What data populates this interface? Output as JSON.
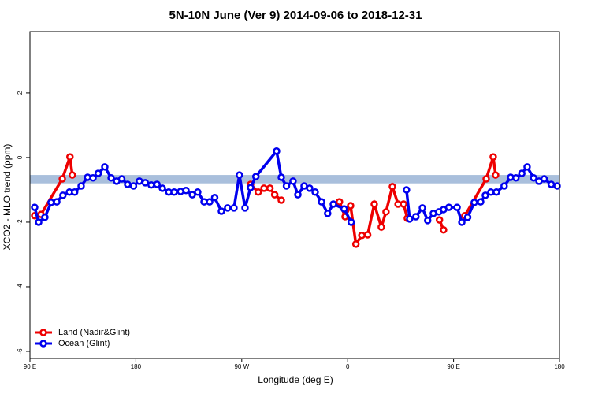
{
  "chart_data": {
    "type": "line",
    "title": "5N-10N June (Ver 9)   2014-09-06 to 2018-12-31",
    "x_label": "Longitude (deg E)",
    "y_label": "XCO2 - MLO trend (ppm)",
    "xlim": [
      90,
      540
    ],
    "ylim": [
      -6.22,
      3.9
    ],
    "xticks": [
      {
        "value": 90,
        "label": "90 E"
      },
      180,
      {
        "value": 270,
        "label": "90 W"
      },
      {
        "value": 360,
        "label": "0"
      },
      {
        "value": 450,
        "label": "90 E"
      },
      {
        "value": 540,
        "label": "180"
      }
    ],
    "yticks": [
      -6,
      -4,
      -2,
      0,
      2
    ],
    "band": [
      -0.8,
      -0.54
    ],
    "band_color": "#a9bfdc",
    "legend": "bottom-left",
    "series": [
      {
        "name": "Land (Nadir&Glint)",
        "color": "#ee0000",
        "x": [
          94,
          99.4,
          117.5,
          124,
          126,
          null,
          277.5,
          284,
          288.9,
          294,
          298,
          303.6,
          null,
          353,
          357.8,
          362.5,
          367,
          372,
          377,
          382.6,
          388.6,
          392.6,
          398,
          402.8,
          407.5,
          410.7,
          null,
          438,
          441.5,
          null,
          459.6,
          477.7,
          483.7,
          485.7
        ],
        "values": [
          -1.8,
          -1.76,
          -0.66,
          0.02,
          -0.54,
          null,
          -0.83,
          -1.07,
          -0.95,
          -0.95,
          -1.15,
          -1.32,
          null,
          -1.37,
          -1.83,
          -1.49,
          -2.68,
          -2.41,
          -2.39,
          -1.44,
          -2.15,
          -1.68,
          -0.9,
          -1.44,
          -1.44,
          -1.88,
          null,
          -1.93,
          -2.24,
          null,
          -1.8,
          -0.66,
          0.02,
          -0.54
        ]
      },
      {
        "name": "Ocean (Glint)",
        "color": "#0000ee",
        "x": [
          94,
          97.4,
          102.7,
          108,
          112.8,
          118,
          123.5,
          128,
          133.5,
          139,
          143.6,
          148,
          153.6,
          159,
          163.7,
          168,
          173,
          178,
          183,
          188,
          193,
          198,
          202.5,
          208,
          212.5,
          218,
          222.6,
          228,
          232.6,
          238,
          242.7,
          247,
          252.7,
          258,
          263.4,
          268,
          272.8,
          277.5,
          282,
          299.6,
          303.6,
          308,
          313.6,
          317.7,
          323,
          327.7,
          332.4,
          337.8,
          343,
          347.8,
          357,
          363,
          null,
          410,
          412.7,
          418,
          423.5,
          428,
          432.8,
          437.5,
          441.5,
          446,
          453,
          457,
          462,
          467.6,
          473,
          477,
          481.7,
          486.4,
          493,
          498.5,
          503,
          508,
          512.5,
          518,
          522.6,
          527,
          533,
          538
        ],
        "values": [
          -1.54,
          -2.0,
          -1.85,
          -1.39,
          -1.37,
          -1.17,
          -1.07,
          -1.07,
          -0.88,
          -0.61,
          -0.63,
          -0.49,
          -0.29,
          -0.63,
          -0.73,
          -0.66,
          -0.83,
          -0.88,
          -0.73,
          -0.78,
          -0.85,
          -0.83,
          -0.95,
          -1.07,
          -1.07,
          -1.05,
          -1.02,
          -1.15,
          -1.07,
          -1.37,
          -1.37,
          -1.24,
          -1.66,
          -1.56,
          -1.56,
          -0.54,
          -1.56,
          -0.93,
          -0.59,
          0.2,
          -0.61,
          -0.88,
          -0.73,
          -1.15,
          -0.88,
          -0.95,
          -1.07,
          -1.37,
          -1.73,
          -1.44,
          -1.59,
          -2.0,
          null,
          -1.0,
          -1.9,
          -1.83,
          -1.56,
          -1.95,
          -1.73,
          -1.68,
          -1.61,
          -1.54,
          -1.54,
          -2.0,
          -1.85,
          -1.39,
          -1.37,
          -1.17,
          -1.07,
          -1.07,
          -0.88,
          -0.61,
          -0.63,
          -0.49,
          -0.29,
          -0.63,
          -0.73,
          -0.66,
          -0.83,
          -0.88
        ]
      }
    ]
  }
}
